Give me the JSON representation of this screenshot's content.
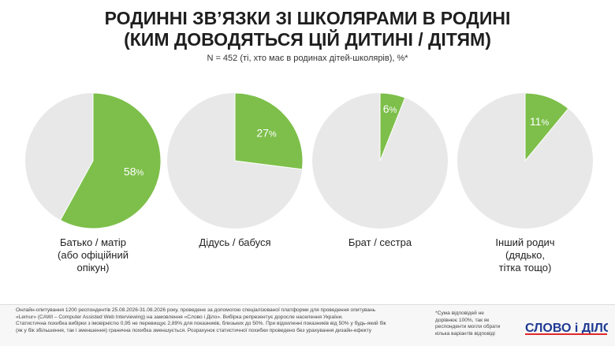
{
  "title_line1": "РОДИННІ ЗВ’ЯЗКИ ЗІ ШКОЛЯРАМИ В РОДИНІ",
  "title_line2": "(КИМ ДОВОДЯТЬСЯ ЦІЙ ДИТИНІ / ДІТЯМ)",
  "subtitle": "N = 452 (ті, хто має в родинах дітей-школярів), %*",
  "colors": {
    "accent": "#7dbf4a",
    "rest": "#e8e8e8"
  },
  "chart_data": {
    "type": "pie",
    "title": "РОДИННІ ЗВ’ЯЗКИ ЗІ ШКОЛЯРАМИ В РОДИНІ (КИМ ДОВОДЯТЬСЯ ЦІЙ ДИТИНІ / ДІТЯМ)",
    "unit": "%",
    "slices": [
      {
        "category": "Батько / матір\n(або офіційний\nопікун)",
        "value": 58
      },
      {
        "category": "Дідусь / бабуся",
        "value": 27
      },
      {
        "category": "Брат / сестра",
        "value": 6
      },
      {
        "category": "Інший родич\n(дядько,\nтітка тощо)",
        "value": 11
      }
    ]
  },
  "footer": {
    "methodology": "Онлайн-опитування 1200 респондентів 25.08.2026-31.08.2026 року, проведене за допомогою спеціалізованої платформи для проведення опитувань\n«Lemur» (CAWI – Computer Assisted Web Interviewing) на замовлення «Слово і Діло». Вибірка репрезентує доросле населення України.\nСтатистична похибка вибірки з імовірністю 0,95 не перевищує 2,89% для показників, близьких до 50%. При відхиленні показників від 50% у будь-який бік\n(як у бік збільшення, так і зменшення) гранична похибка зменшується. Розрахунок статистичної похибки проведено без урахування дизайн-ефекту",
    "note": "*Сума відповідей не\nдорівнює 100%, так як\nреспонденти могли обрати\nкілька варіантів відповіді",
    "logo_text": "СЛОВО і ДІЛО"
  }
}
